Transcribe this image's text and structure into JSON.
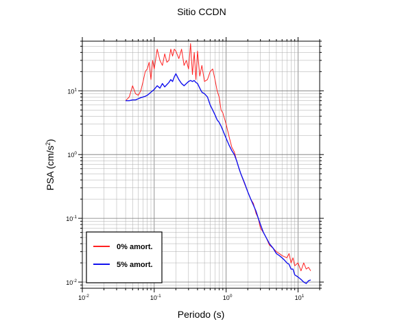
{
  "chart_data": {
    "type": "line",
    "title": "Sitio CCDN",
    "xlabel": "Periodo (s)",
    "ylabel": "PSA (cm/s",
    "ylabel_sup": "2",
    "ylabel_close": ")",
    "xscale": "log",
    "yscale": "log",
    "xlim": [
      0.01,
      20
    ],
    "ylim": [
      0.008,
      60
    ],
    "grid": true,
    "legend_position": "bottom-left",
    "xticks": [
      {
        "value": 0.01,
        "base": "10",
        "exp": "-2"
      },
      {
        "value": 0.1,
        "base": "10",
        "exp": "-1"
      },
      {
        "value": 1,
        "base": "10",
        "exp": "0"
      },
      {
        "value": 10,
        "base": "10",
        "exp": "1"
      }
    ],
    "yticks": [
      {
        "value": 0.01,
        "base": "10",
        "exp": "-2"
      },
      {
        "value": 0.1,
        "base": "10",
        "exp": "-1"
      },
      {
        "value": 1,
        "base": "10",
        "exp": "0"
      },
      {
        "value": 10,
        "base": "10",
        "exp": "1"
      }
    ],
    "series": [
      {
        "name": "0% amort.",
        "color": "#ff2020",
        "x": [
          0.04,
          0.045,
          0.05,
          0.055,
          0.06,
          0.065,
          0.07,
          0.075,
          0.08,
          0.085,
          0.09,
          0.095,
          0.1,
          0.11,
          0.12,
          0.13,
          0.14,
          0.15,
          0.16,
          0.17,
          0.18,
          0.19,
          0.2,
          0.22,
          0.24,
          0.26,
          0.28,
          0.3,
          0.32,
          0.34,
          0.36,
          0.38,
          0.4,
          0.43,
          0.46,
          0.5,
          0.55,
          0.6,
          0.65,
          0.7,
          0.75,
          0.8,
          0.85,
          0.9,
          1.0,
          1.1,
          1.2,
          1.3,
          1.4,
          1.5,
          1.6,
          1.8,
          2.0,
          2.2,
          2.4,
          2.6,
          2.8,
          3.0,
          3.3,
          3.6,
          4.0,
          4.5,
          5.0,
          5.5,
          6.0,
          6.5,
          7.0,
          7.5,
          8.0,
          8.5,
          9.0,
          10,
          11,
          12,
          13,
          14,
          15
        ],
        "y": [
          7.0,
          8.0,
          12.0,
          9.0,
          8.5,
          10.0,
          14.0,
          20.0,
          22.0,
          28.0,
          15.0,
          30.0,
          22.0,
          45.0,
          30.0,
          25.0,
          38.0,
          28.0,
          30.0,
          45.0,
          35.0,
          45.0,
          42.0,
          32.0,
          45.0,
          25.0,
          30.0,
          22.0,
          55.0,
          18.0,
          40.0,
          15.0,
          42.0,
          17.0,
          25.0,
          14.0,
          15.0,
          20.0,
          22.0,
          15.0,
          10.0,
          8.0,
          5.0,
          4.5,
          3.0,
          1.9,
          1.3,
          1.1,
          0.8,
          0.62,
          0.5,
          0.35,
          0.26,
          0.2,
          0.17,
          0.12,
          0.1,
          0.07,
          0.06,
          0.05,
          0.038,
          0.034,
          0.03,
          0.028,
          0.026,
          0.025,
          0.024,
          0.028,
          0.02,
          0.024,
          0.018,
          0.02,
          0.015,
          0.02,
          0.016,
          0.017,
          0.015
        ]
      },
      {
        "name": "5% amort.",
        "color": "#1010ee",
        "x": [
          0.04,
          0.045,
          0.05,
          0.055,
          0.06,
          0.065,
          0.07,
          0.075,
          0.08,
          0.085,
          0.09,
          0.095,
          0.1,
          0.11,
          0.12,
          0.13,
          0.14,
          0.15,
          0.16,
          0.17,
          0.18,
          0.19,
          0.2,
          0.22,
          0.24,
          0.26,
          0.28,
          0.3,
          0.32,
          0.34,
          0.36,
          0.38,
          0.4,
          0.43,
          0.46,
          0.5,
          0.55,
          0.6,
          0.65,
          0.7,
          0.75,
          0.8,
          0.85,
          0.9,
          1.0,
          1.1,
          1.2,
          1.3,
          1.4,
          1.5,
          1.6,
          1.8,
          2.0,
          2.2,
          2.4,
          2.6,
          2.8,
          3.0,
          3.3,
          3.6,
          4.0,
          4.5,
          5.0,
          5.5,
          6.0,
          6.5,
          7.0,
          7.5,
          8.0,
          8.5,
          9.0,
          10,
          11,
          12,
          13,
          14,
          15
        ],
        "y": [
          7.0,
          7.0,
          7.2,
          7.2,
          7.5,
          7.8,
          8.0,
          8.2,
          8.5,
          9.0,
          9.5,
          10.0,
          10.5,
          12.0,
          11.0,
          13.0,
          11.5,
          12.5,
          13.5,
          15.0,
          14.0,
          16.5,
          18.5,
          15.0,
          13.0,
          12.0,
          13.0,
          14.0,
          14.5,
          14.0,
          14.5,
          13.5,
          13.0,
          11.0,
          9.5,
          9.0,
          8.0,
          6.0,
          5.0,
          4.2,
          3.5,
          3.2,
          2.8,
          2.4,
          1.8,
          1.4,
          1.15,
          1.0,
          0.8,
          0.62,
          0.5,
          0.36,
          0.26,
          0.2,
          0.16,
          0.13,
          0.1,
          0.08,
          0.06,
          0.05,
          0.04,
          0.034,
          0.028,
          0.026,
          0.024,
          0.022,
          0.02,
          0.019,
          0.016,
          0.016,
          0.013,
          0.012,
          0.011,
          0.01,
          0.0095,
          0.0105,
          0.0108
        ]
      }
    ]
  }
}
